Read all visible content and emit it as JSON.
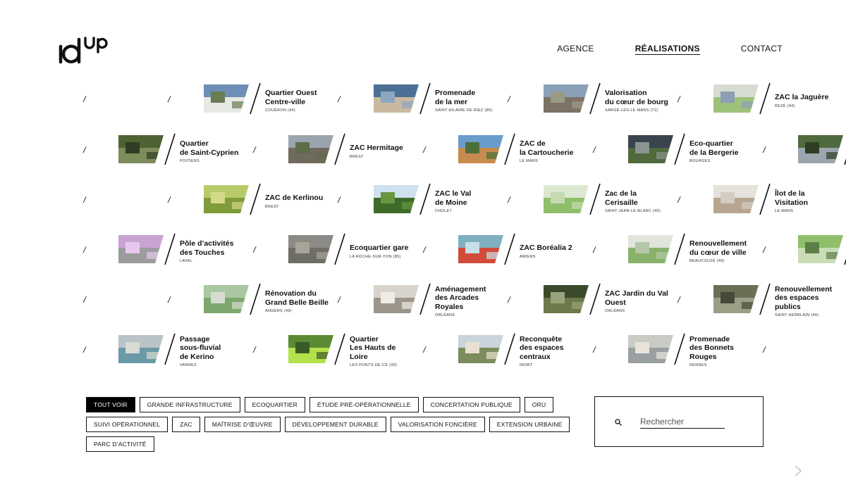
{
  "nav": [
    {
      "label": "AGENCE",
      "active": false
    },
    {
      "label": "RÉALISATIONS",
      "active": true
    },
    {
      "label": "CONTACT",
      "active": false
    }
  ],
  "tiles": [
    {
      "title": "Quartier Ouest\nCentre-ville",
      "location": "COUËRON (44)",
      "palette": [
        "#6d8fb5",
        "#e8e8e4",
        "#6a7c52"
      ]
    },
    {
      "title": "Promenade\nde la mer",
      "location": "SAINT-HILAIRE DE RIEZ (85)",
      "palette": [
        "#4b6f95",
        "#c9b9a0",
        "#8da6c0"
      ]
    },
    {
      "title": "Valorisation\ndu cœur de bourg",
      "location": "SARGÉ-LÈS-LE MANS (72)",
      "palette": [
        "#8aa0b8",
        "#7d7263",
        "#9a9a88"
      ]
    },
    {
      "title": "ZAC la Jaguère",
      "location": "REZÉ (44)",
      "palette": [
        "#d6dcd2",
        "#9fc27a",
        "#8e9fb5"
      ]
    },
    {
      "title": "Quartier\nde Saint-Cyprien",
      "location": "POITIERS",
      "palette": [
        "#4e6234",
        "#7d8c5a",
        "#2f3d24"
      ]
    },
    {
      "title": "ZAC Hermitage",
      "location": "BREST",
      "palette": [
        "#9aa5ae",
        "#6e6a5c",
        "#5c6d48"
      ]
    },
    {
      "title": "ZAC de\nla Cartoucherie",
      "location": "LE MANS",
      "palette": [
        "#6a9ccc",
        "#c68b4e",
        "#4d6f3a"
      ]
    },
    {
      "title": "Eco-quartier\nde la Bergerie",
      "location": "BOURGES",
      "palette": [
        "#39444f",
        "#4f6a3d",
        "#8a958f"
      ]
    },
    {
      "title": "ZAC de Kerlinou",
      "location": "BREST",
      "palette": [
        "#b8cb6a",
        "#7f9b3a",
        "#d4d98c"
      ]
    },
    {
      "title": "ZAC le Val\nde Moine",
      "location": "CHOLET",
      "palette": [
        "#cfe0ee",
        "#3f6b2a",
        "#6a9540"
      ]
    },
    {
      "title": "Zac de la\nCerisaille",
      "location": "SAINT-JEAN-LE-BLANC (45)",
      "palette": [
        "#dce8d2",
        "#8fbf6a",
        "#c5d9b2"
      ]
    },
    {
      "title": "Îlot de la\nVisitation",
      "location": "LE MANS",
      "palette": [
        "#e6e2dc",
        "#b8a58f",
        "#d4ccc2"
      ]
    },
    {
      "title": "Pôle d’activités\ndes Touches",
      "location": "LAVAL",
      "palette": [
        "#c9a3d3",
        "#9c9c9c",
        "#e7c7ee"
      ]
    },
    {
      "title": "Ecoquartier gare",
      "location": "LA ROCHE-SUR-YON (85)",
      "palette": [
        "#8c8a86",
        "#6e6d66",
        "#a8a49a"
      ]
    },
    {
      "title": "ZAC Boréalia 2",
      "location": "AMIENS",
      "palette": [
        "#7fb0c0",
        "#d24b3a",
        "#c7dfe6"
      ]
    },
    {
      "title": "Renouvellement\ndu cœur de ville",
      "location": "BEAUCOUZÉ (49)",
      "palette": [
        "#e0e4da",
        "#88b26a",
        "#b6c6a8"
      ]
    },
    {
      "title": "Rénovation du\nGrand Belle Beille",
      "location": "ANGERS (49)",
      "palette": [
        "#a9c7a0",
        "#7da86d",
        "#d6dccf"
      ]
    },
    {
      "title": "Aménagement\ndes Arcades\nRoyales",
      "location": "ORLÉANS",
      "palette": [
        "#d8d4cc",
        "#9c958a",
        "#efece6"
      ]
    },
    {
      "title": "ZAC Jardin du Val\nOuest",
      "location": "ORLÉANS",
      "palette": [
        "#3c4a2c",
        "#6c7a4a",
        "#9aa27c"
      ]
    },
    {
      "title": "Renouvellement\ndes espaces\npublics",
      "location": "SAINT-HERBLAIN (44)",
      "palette": [
        "#6a7056",
        "#9aa085",
        "#454a38"
      ]
    },
    {
      "title": "Passage\nsous-fluvial\nde Kerino",
      "location": "VANNES",
      "palette": [
        "#b8c4c8",
        "#6a9aa6",
        "#d8dcd2"
      ]
    },
    {
      "title": "Quartier\nLes Hauts de\nLoire",
      "location": "LES PONTS-DE-CÉ (49)",
      "palette": [
        "#5b8a34",
        "#b4e04c",
        "#3b5a2a"
      ]
    },
    {
      "title": "Reconquête\ndes espaces\ncentraux",
      "location": "NIORT",
      "palette": [
        "#c9d4dc",
        "#7c8c5c",
        "#e8e0d2"
      ]
    },
    {
      "title": "Promenade\ndes Bonnets\nRouges",
      "location": "RENNES",
      "palette": [
        "#c8ccc4",
        "#9aa0a2",
        "#e8e4dc"
      ]
    },
    {
      "title": "",
      "location": "",
      "palette": [
        "#4f6a3d",
        "#9aa5ae",
        "#2f3d24"
      ]
    },
    {
      "title": "",
      "location": "",
      "palette": [
        "#8fbf6a",
        "#c8dcb6",
        "#5e7e48"
      ]
    }
  ],
  "filters": [
    {
      "label": "TOUT VOIR",
      "active": true
    },
    {
      "label": "GRANDE INFRASTRUCTURE",
      "active": false
    },
    {
      "label": "ECOQUARTIER",
      "active": false
    },
    {
      "label": "ÉTUDE PRÉ-OPÉRATIONNELLE",
      "active": false
    },
    {
      "label": "CONCERTATION PUBLIQUE",
      "active": false
    },
    {
      "label": "ORU",
      "active": false
    },
    {
      "label": "SUIVI OPÉRATIONNEL",
      "active": false
    },
    {
      "label": "ZAC",
      "active": false
    },
    {
      "label": "MAÎTRISE D’ŒUVRE",
      "active": false
    },
    {
      "label": "DÉVELOPPEMENT DURABLE",
      "active": false
    },
    {
      "label": "VALORISATION FONCIÈRE",
      "active": false
    },
    {
      "label": "EXTENSION URBAINE",
      "active": false
    },
    {
      "label": "PARC D’ACTIVITÉ",
      "active": false
    }
  ],
  "search": {
    "placeholder": "Rechercher"
  },
  "icons": {
    "search": "search-icon",
    "next": "chevron-right-icon"
  }
}
